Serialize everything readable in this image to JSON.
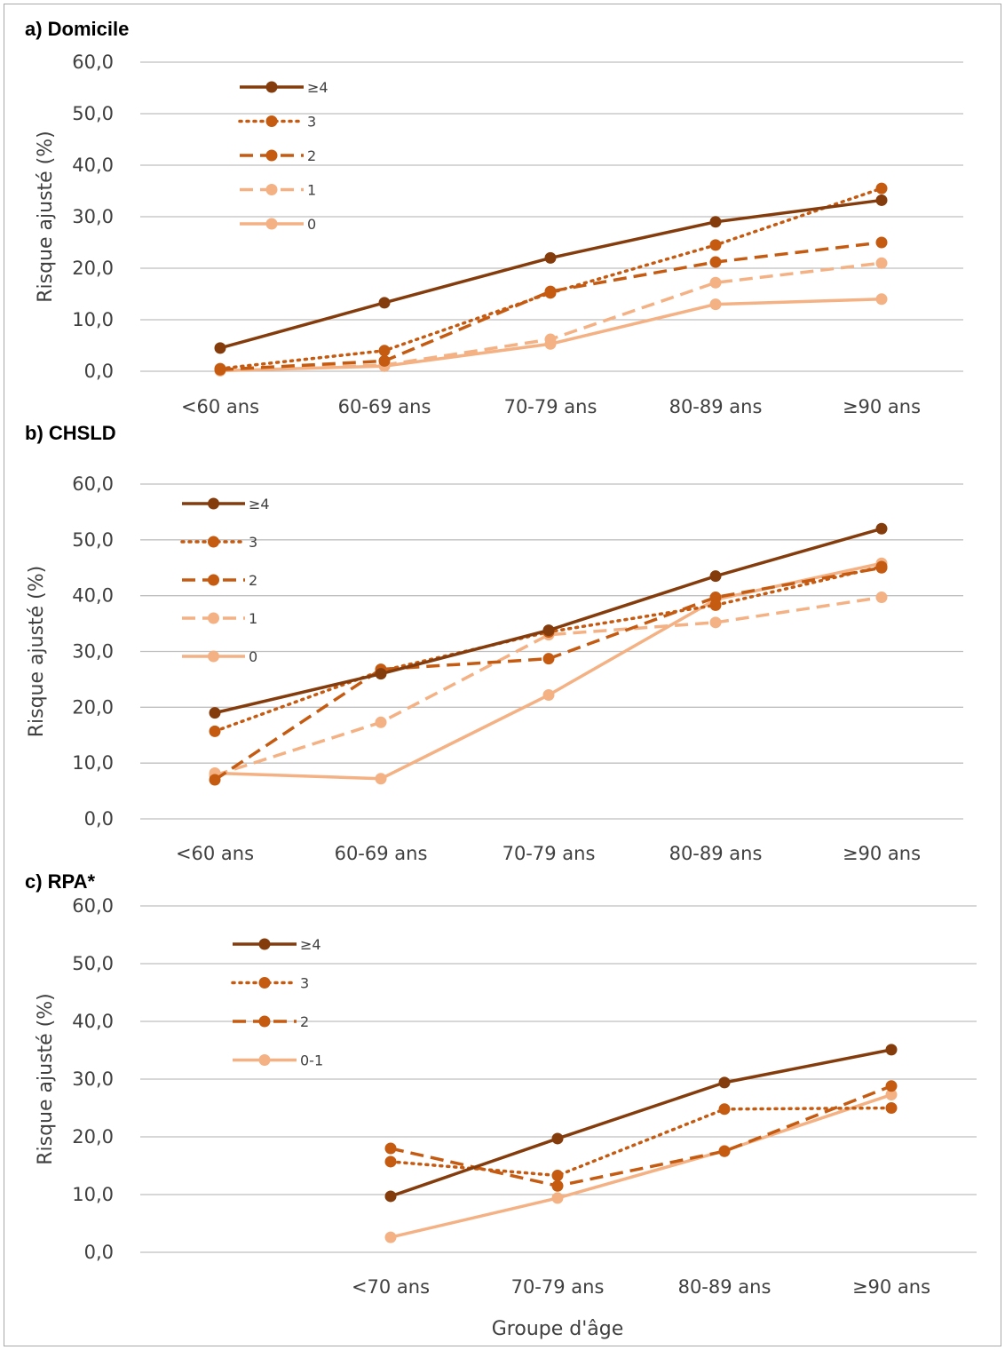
{
  "chart_data": [
    {
      "type": "line",
      "title": "a) Domicile",
      "ylabel": "Risque ajusté (%)",
      "xlabel": "",
      "ylim": [
        0,
        60
      ],
      "yticks": [
        "0,0",
        "10,0",
        "20,0",
        "30,0",
        "40,0",
        "50,0",
        "60,0"
      ],
      "categories": [
        "<60 ans",
        "60-69 ans",
        "70-79 ans",
        "80-89 ans",
        "≥90 ans"
      ],
      "grid": true,
      "legend_position": "top-left",
      "series": [
        {
          "name": "≥4",
          "style": "solid",
          "color": "#843c0c",
          "values": [
            4.5,
            13.3,
            22.0,
            29.0,
            33.2
          ]
        },
        {
          "name": "3",
          "style": "dotted",
          "color": "#c55a11",
          "values": [
            0.5,
            4.0,
            15.2,
            24.5,
            35.5
          ]
        },
        {
          "name": "2",
          "style": "dashed",
          "color": "#c55a11",
          "values": [
            0.3,
            2.0,
            15.5,
            21.2,
            25.0
          ]
        },
        {
          "name": "1",
          "style": "dashed",
          "color": "#f4b183",
          "values": [
            0.2,
            1.2,
            6.2,
            17.2,
            21.0
          ]
        },
        {
          "name": "0",
          "style": "solid",
          "color": "#f4b183",
          "values": [
            0.1,
            1.0,
            5.3,
            13.0,
            14.0
          ]
        }
      ]
    },
    {
      "type": "line",
      "title": "b) CHSLD",
      "ylabel": "Risque ajusté (%)",
      "xlabel": "",
      "ylim": [
        0,
        60
      ],
      "yticks": [
        "0,0",
        "10,0",
        "20,0",
        "30,0",
        "40,0",
        "50,0",
        "60,0"
      ],
      "categories": [
        "<60 ans",
        "60-69 ans",
        "70-79 ans",
        "80-89 ans",
        "≥90 ans"
      ],
      "grid": true,
      "legend_position": "top-left",
      "series": [
        {
          "name": "≥4",
          "style": "solid",
          "color": "#843c0c",
          "values": [
            19.0,
            26.0,
            33.8,
            43.5,
            52.0
          ]
        },
        {
          "name": "3",
          "style": "dotted",
          "color": "#c55a11",
          "values": [
            15.7,
            26.5,
            33.5,
            38.3,
            45.2
          ]
        },
        {
          "name": "2",
          "style": "dashed",
          "color": "#c55a11",
          "values": [
            7.0,
            26.8,
            28.7,
            39.7,
            45.0
          ]
        },
        {
          "name": "1",
          "style": "dashed",
          "color": "#f4b183",
          "values": [
            7.8,
            17.3,
            33.0,
            35.2,
            39.7
          ]
        },
        {
          "name": "0",
          "style": "solid",
          "color": "#f4b183",
          "values": [
            8.2,
            7.2,
            22.2,
            39.3,
            45.8
          ]
        }
      ]
    },
    {
      "type": "line",
      "title": "c) RPA*",
      "ylabel": "Risque ajusté (%)",
      "xlabel": "Groupe d'âge",
      "ylim": [
        0,
        60
      ],
      "yticks": [
        "0,0",
        "10,0",
        "20,0",
        "30,0",
        "40,0",
        "50,0",
        "60,0"
      ],
      "categories": [
        "",
        "<70 ans",
        "70-79 ans",
        "80-89 ans",
        "≥90 ans"
      ],
      "grid": true,
      "legend_position": "top-left",
      "series": [
        {
          "name": "≥4",
          "style": "solid",
          "color": "#843c0c",
          "values": [
            null,
            9.7,
            19.7,
            29.4,
            35.1
          ]
        },
        {
          "name": "3",
          "style": "dotted",
          "color": "#c55a11",
          "values": [
            null,
            15.7,
            13.3,
            24.8,
            25.0
          ]
        },
        {
          "name": "2",
          "style": "dashed",
          "color": "#c55a11",
          "values": [
            null,
            18.0,
            11.5,
            17.5,
            28.8
          ]
        },
        {
          "name": "0-1",
          "style": "solid",
          "color": "#f4b183",
          "values": [
            null,
            2.6,
            9.4,
            17.6,
            27.3
          ]
        }
      ]
    }
  ]
}
